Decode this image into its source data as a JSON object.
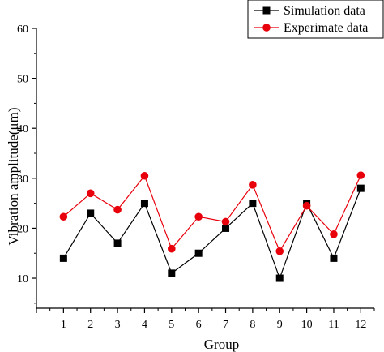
{
  "chart_data": {
    "type": "line",
    "xlabel": "Group",
    "ylabel": "Vibration amplitude(μm)",
    "xlim": [
      0,
      12.5
    ],
    "ylim": [
      4,
      60
    ],
    "x_ticks": [
      1,
      2,
      3,
      4,
      5,
      6,
      7,
      8,
      9,
      10,
      11,
      12
    ],
    "y_ticks": [
      10,
      20,
      30,
      40,
      50,
      60
    ],
    "grid": false,
    "legend_position": "top-right",
    "categories": [
      "1",
      "2",
      "3",
      "4",
      "5",
      "6",
      "7",
      "8",
      "9",
      "10",
      "11",
      "12"
    ],
    "series": [
      {
        "name": "Simulation data",
        "color": "#000000",
        "marker": "square",
        "values": [
          14,
          23,
          17,
          25,
          11,
          15,
          20,
          25,
          10,
          25,
          14,
          28
        ]
      },
      {
        "name": "Experimate data",
        "color": "#e8000b",
        "marker": "circle",
        "values": [
          22.3,
          27,
          23.7,
          30.5,
          15.9,
          22.3,
          21.3,
          28.7,
          15.4,
          24.5,
          18.8,
          30.6
        ]
      }
    ]
  }
}
